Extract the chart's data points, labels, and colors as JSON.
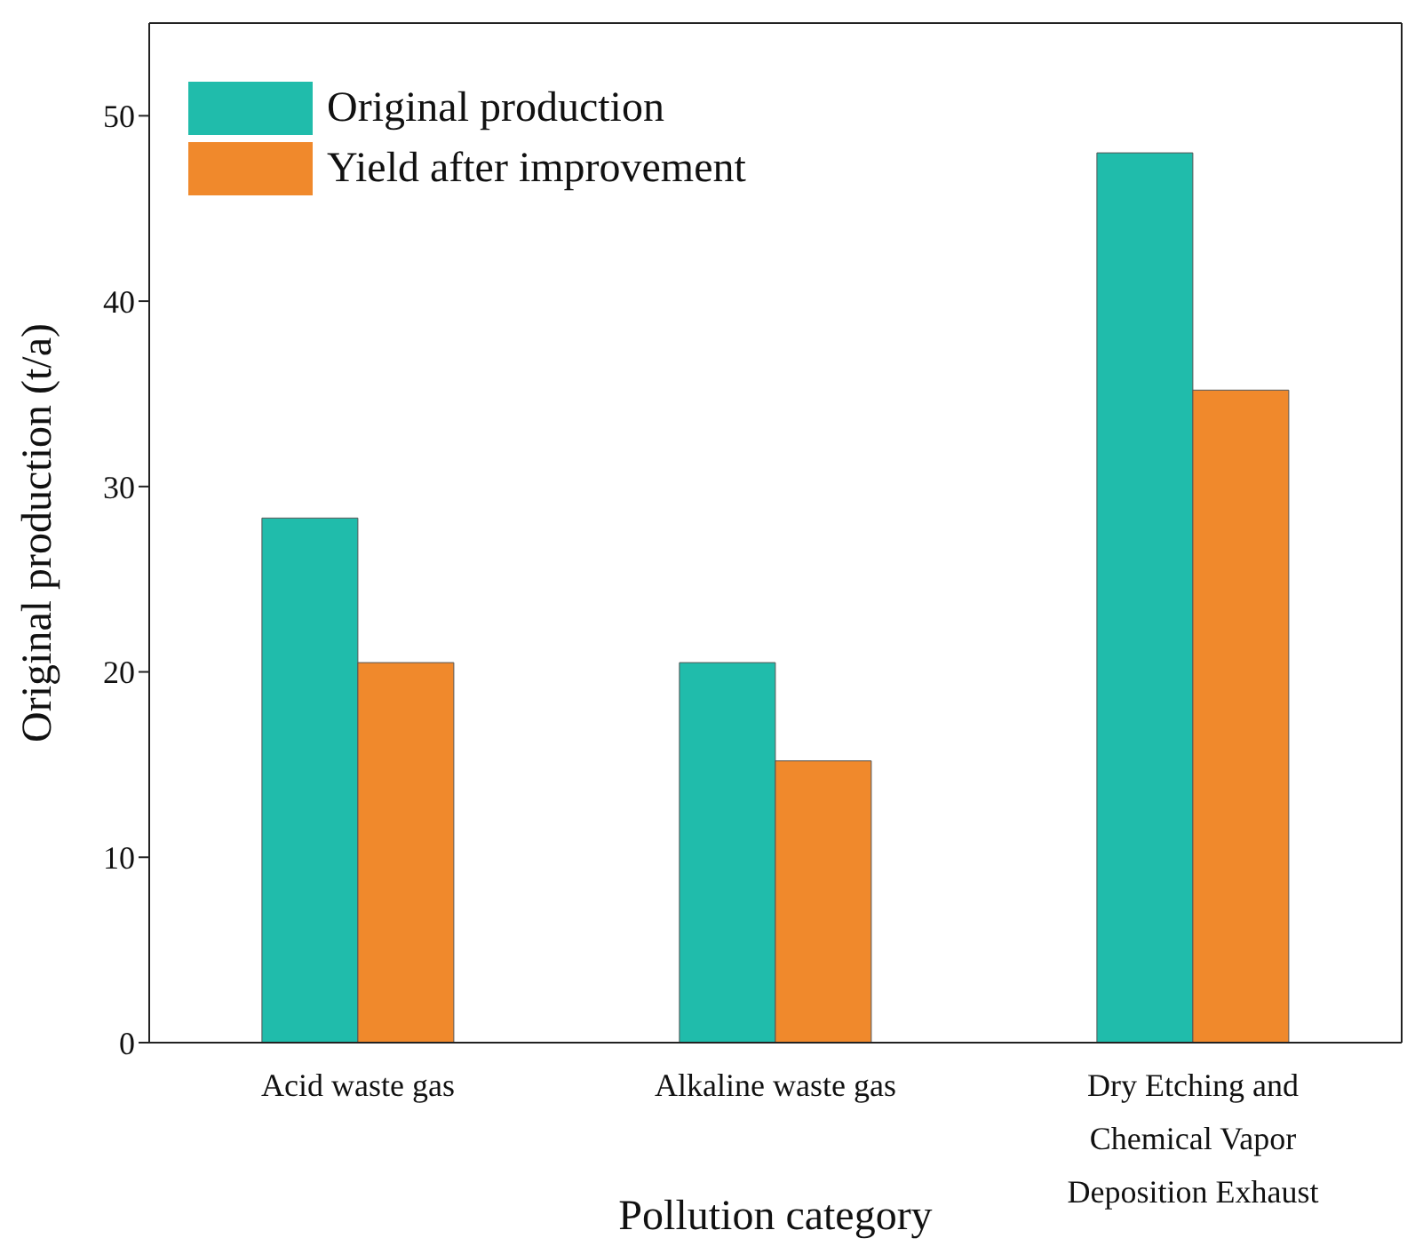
{
  "chart_data": {
    "type": "bar",
    "xlabel": "Pollution category",
    "ylabel": "Original production (t/a)",
    "categories": [
      "Acid waste gas",
      "Alkaline waste gas",
      "Dry Etching and Chemical Vapor Deposition Exhaust"
    ],
    "series": [
      {
        "name": "Original production",
        "color": "#20bcab",
        "values": [
          28.3,
          20.5,
          48.0
        ]
      },
      {
        "name": "Yield after improvement",
        "color": "#f0892c",
        "values": [
          20.5,
          15.2,
          35.2
        ]
      }
    ],
    "ylim": [
      0,
      55
    ],
    "yticks": [
      0,
      10,
      20,
      30,
      40,
      50
    ],
    "legend": "top left"
  }
}
